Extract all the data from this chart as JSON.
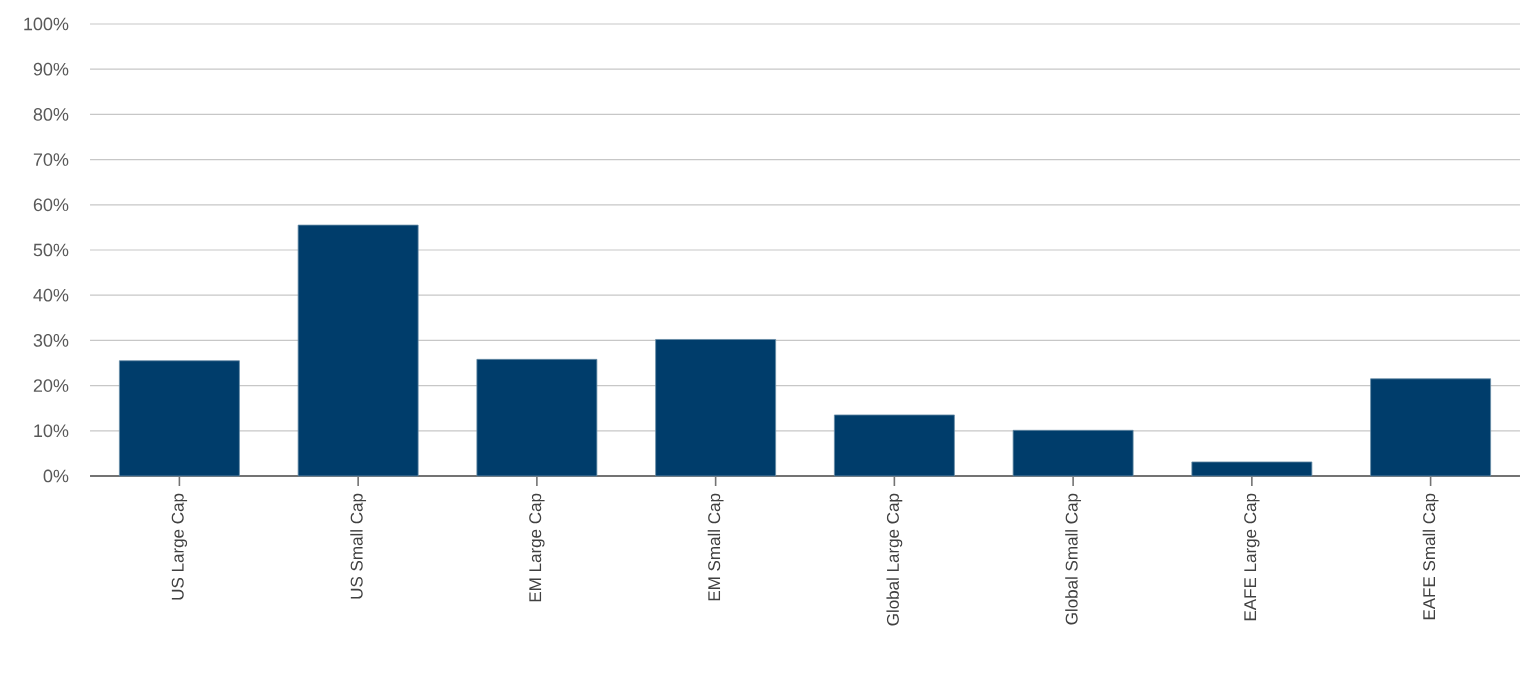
{
  "chart_data": {
    "type": "bar",
    "categories": [
      "US Large Cap",
      "US Small Cap",
      "EM Large Cap",
      "EM Small Cap",
      "Global Large Cap",
      "Global Small Cap",
      "EAFE Large Cap",
      "EAFE Small Cap"
    ],
    "values": [
      25.5,
      55.5,
      25.8,
      30.2,
      13.5,
      10.1,
      3.1,
      21.5
    ],
    "color": "#003d6b",
    "ylim": [
      0,
      100
    ],
    "yticks": [
      {
        "value": 0,
        "label": "0%"
      },
      {
        "value": 10,
        "label": "10%"
      },
      {
        "value": 20,
        "label": "20%"
      },
      {
        "value": 30,
        "label": "30%"
      },
      {
        "value": 40,
        "label": "40%"
      },
      {
        "value": 50,
        "label": "50%"
      },
      {
        "value": 60,
        "label": "60%"
      },
      {
        "value": 70,
        "label": "70%"
      },
      {
        "value": 80,
        "label": "80%"
      },
      {
        "value": 90,
        "label": "90%"
      },
      {
        "value": 100,
        "label": "100%"
      }
    ],
    "grid": "y"
  }
}
